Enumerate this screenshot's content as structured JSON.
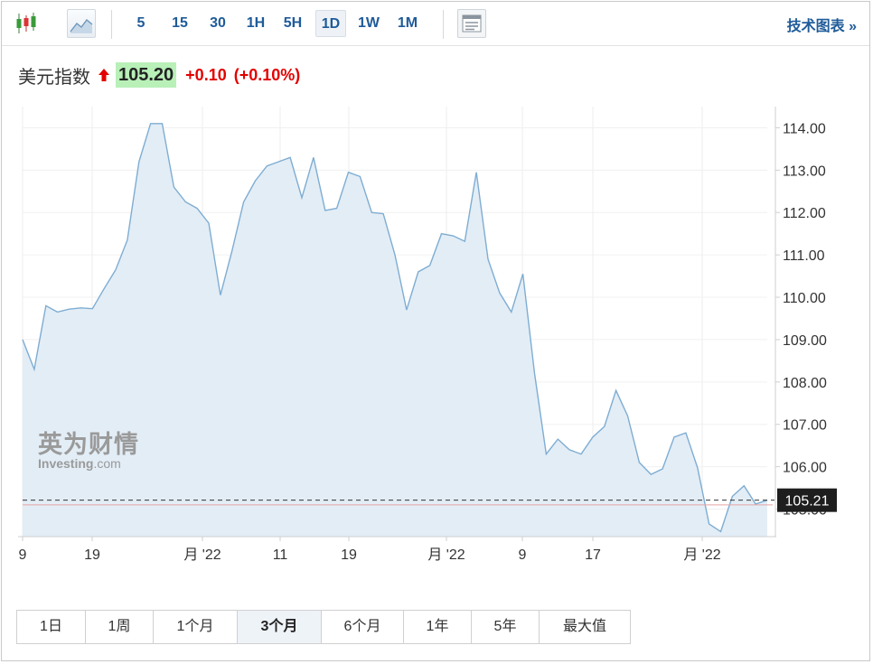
{
  "toolbar": {
    "intervals": [
      "5",
      "15",
      "30",
      "1H",
      "5H",
      "1D",
      "1W",
      "1M"
    ],
    "active_interval": "1D",
    "tech_chart_label": "技术图表 »"
  },
  "quote": {
    "name": "美元指数",
    "price": "105.20",
    "change": "+0.10",
    "change_pct": "(+0.10%)",
    "direction": "up",
    "up_color": "#e30000"
  },
  "watermark": {
    "cn": "英为财情",
    "en": "Investing",
    "en_suffix": ".com"
  },
  "chart_data": {
    "type": "area",
    "y_ticks": [
      "114.00",
      "113.00",
      "112.00",
      "111.00",
      "110.00",
      "109.00",
      "108.00",
      "107.00",
      "106.00",
      "105.00"
    ],
    "ylim": [
      104.35,
      114.5
    ],
    "x_tick_labels": [
      "9",
      "19",
      "月 '22",
      "11",
      "19",
      "月 '22",
      "9",
      "17",
      "月 '22"
    ],
    "current_value_label": "105.21",
    "reference_value": 105.21,
    "previous_close": 105.1,
    "line_color": "#7eadd2",
    "fill_color": "#e3edf6",
    "series": [
      {
        "values": [
          109.0,
          108.3,
          109.8,
          109.65,
          109.72,
          109.75,
          109.73,
          110.2,
          110.65,
          111.35,
          113.2,
          114.1,
          114.1,
          112.6,
          112.25,
          112.1,
          111.75,
          110.05,
          111.1,
          112.25,
          112.75,
          113.1,
          113.2,
          113.3,
          112.35,
          113.3,
          112.05,
          112.1,
          112.95,
          112.85,
          112.0,
          111.97,
          111.0,
          109.7,
          110.6,
          110.75,
          111.5,
          111.45,
          111.32,
          112.95,
          110.9,
          110.1,
          109.65,
          110.55,
          108.2,
          106.3,
          106.65,
          106.4,
          106.3,
          106.7,
          106.95,
          107.8,
          107.2,
          106.1,
          105.82,
          105.95,
          106.7,
          106.8,
          105.98,
          104.65,
          104.47,
          105.3,
          105.55,
          105.12,
          105.21
        ]
      }
    ]
  },
  "ranges": {
    "items": [
      "1日",
      "1周",
      "1个月",
      "3个月",
      "6个月",
      "1年",
      "5年",
      "最大值"
    ],
    "active": "3个月"
  }
}
